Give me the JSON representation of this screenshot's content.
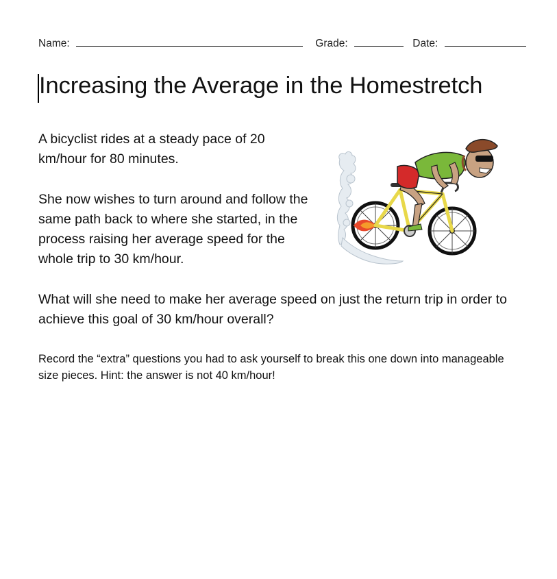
{
  "header": {
    "name_label": "Name:",
    "grade_label": "Grade:",
    "date_label": "Date:"
  },
  "title": "Increasing the Average in the Homestretch",
  "paragraphs": [
    "A bicyclist rides at a steady pace of 20 km/hour for 80 minutes.",
    "She now wishes to turn around and follow the same path back to where she started, in the process raising her average speed for the whole trip to 30 km/hour.",
    "What will she need to make her average speed on just the return trip in order to achieve this goal of 30 km/hour overall?"
  ],
  "instructions": "Record the “extra” questions you had to ask yourself to break this one down into manageable size pieces.  Hint: the answer is not 40 km/hour!",
  "illustration": {
    "icon": "cyclist-illustration",
    "colors": {
      "jersey": "#7ab83a",
      "shorts": "#d42a2a",
      "frame": "#e8d84a",
      "skin": "#c8a282",
      "flame": "#e8482a",
      "dust": "#c9d3dc"
    }
  }
}
